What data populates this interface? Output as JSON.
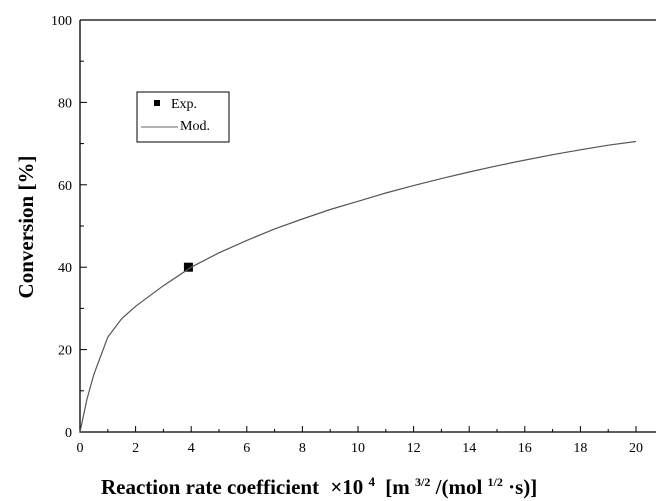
{
  "chart_data": {
    "type": "line",
    "title": "",
    "xlabel": "Reaction rate coefficient",
    "xlabel_multiplier": "×10",
    "xlabel_exponent": "4",
    "xlabel_units": {
      "open": "[m",
      "sup1": "3/2",
      "mid": "/(mol",
      "sup2": "1/2",
      "close": "·s)]"
    },
    "ylabel": "Conversion [%]",
    "xlim": [
      0,
      20
    ],
    "ylim": [
      0,
      100
    ],
    "x_ticks": [
      "0",
      "2",
      "4",
      "6",
      "8",
      "10",
      "12",
      "14",
      "16",
      "18",
      "20"
    ],
    "y_ticks": [
      "0",
      "20",
      "40",
      "60",
      "80",
      "100"
    ],
    "grid": false,
    "legend_position": "upper-left",
    "series": [
      {
        "name": "Exp.",
        "type": "scatter",
        "marker": "square",
        "x": [
          3.9
        ],
        "y": [
          40
        ]
      },
      {
        "name": "Mod.",
        "type": "line",
        "x": [
          0,
          0.25,
          0.5,
          1,
          1.5,
          2,
          3,
          4,
          5,
          6,
          7,
          8,
          9,
          10,
          11,
          12,
          13,
          14,
          15,
          16,
          17,
          18,
          19,
          20
        ],
        "y": [
          0,
          8,
          14,
          23,
          27.5,
          30.5,
          35.5,
          40,
          43.5,
          46.5,
          49.3,
          51.7,
          54,
          56,
          58,
          59.8,
          61.5,
          63.1,
          64.6,
          66,
          67.3,
          68.5,
          69.6,
          70.5
        ]
      }
    ]
  }
}
